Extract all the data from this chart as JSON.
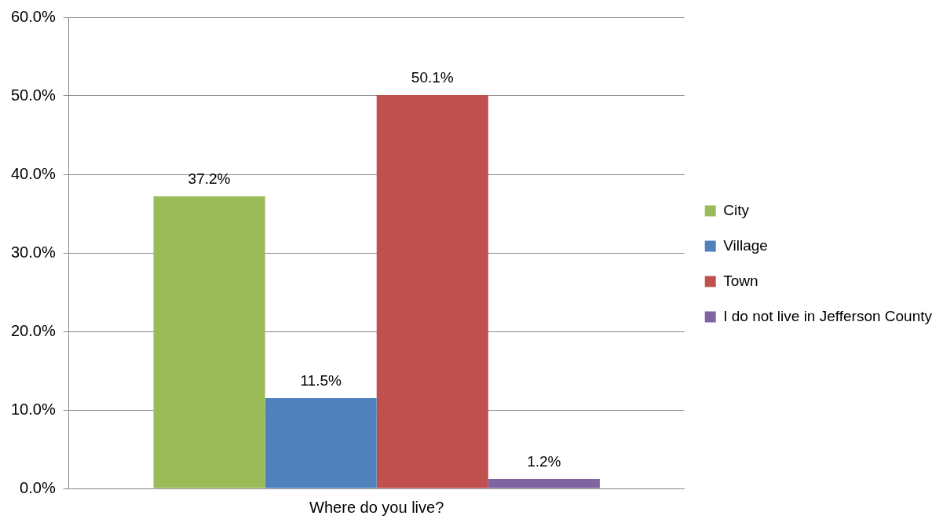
{
  "chart_data": {
    "type": "bar",
    "categories": [
      "Where do you live?"
    ],
    "series": [
      {
        "name": "City",
        "color": "#9bbb59",
        "values": [
          37.2
        ],
        "value_labels": [
          "37.2%"
        ]
      },
      {
        "name": "Village",
        "color": "#4f81bd",
        "values": [
          11.5
        ],
        "value_labels": [
          "11.5%"
        ]
      },
      {
        "name": "Town",
        "color": "#c0504d",
        "values": [
          50.1
        ],
        "value_labels": [
          "50.1%"
        ]
      },
      {
        "name": "I do not live in Jefferson County",
        "color": "#8064a2",
        "values": [
          1.2
        ],
        "value_labels": [
          "1.2%"
        ]
      }
    ],
    "ylim": [
      0,
      60
    ],
    "yticks": [
      {
        "value": 0,
        "label": "0.0%"
      },
      {
        "value": 10,
        "label": "10.0%"
      },
      {
        "value": 20,
        "label": "20.0%"
      },
      {
        "value": 30,
        "label": "30.0%"
      },
      {
        "value": 40,
        "label": "40.0%"
      },
      {
        "value": 50,
        "label": "50.0%"
      },
      {
        "value": 60,
        "label": "60.0%"
      }
    ],
    "grid": "y",
    "legend": "right"
  }
}
